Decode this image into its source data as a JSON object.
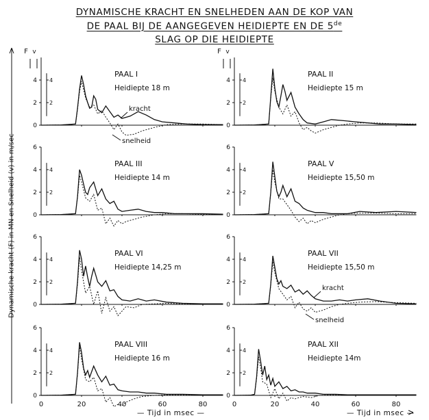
{
  "title": {
    "line1": "DYNAMISCHE KRACHT EN SNELHEDEN AAN DE KOP VAN",
    "line2": "DE PAAL BIJ DE AANGEGEVEN HEIDIEPTE EN DE 5",
    "line2_sup": "de",
    "line3": "SLAG OP DIE HEIDIEPTE"
  },
  "ylabel": "Dynamische kracht (F) in MN en Snelheid (v) in m/sec",
  "xlabel": "Tijd in msec",
  "axis_symbols": {
    "force": "F",
    "velocity": "v"
  },
  "colors": {
    "line": "#111111",
    "background": "#ffffff"
  },
  "chart_data": [
    {
      "type": "line",
      "name": "PAAL I",
      "depth": "Heidiepte 18 m",
      "annotations": [
        "kracht",
        "snelheid"
      ],
      "xlim": [
        0,
        90
      ],
      "ylim": [
        -1,
        6
      ],
      "x_ticks": [],
      "y_ticks_force": [
        0,
        2,
        4
      ],
      "y_ticks_velocity": [
        2,
        4
      ],
      "series": [
        {
          "name": "kracht",
          "x": [
            0,
            10,
            17,
            18,
            19,
            20,
            21,
            22,
            23,
            24,
            25,
            26,
            27,
            28,
            30,
            32,
            34,
            36,
            38,
            40,
            44,
            48,
            52,
            56,
            60,
            66,
            72,
            80,
            90
          ],
          "y": [
            0,
            0.02,
            0.1,
            1.5,
            3.2,
            4.4,
            3.6,
            2.6,
            2.0,
            1.5,
            1.6,
            2.6,
            2.3,
            1.4,
            1.1,
            1.7,
            1.2,
            0.7,
            0.9,
            0.6,
            0.8,
            1.2,
            0.9,
            0.5,
            0.3,
            0.2,
            0.1,
            0.05,
            0.05
          ]
        },
        {
          "name": "snelheid",
          "x": [
            0,
            10,
            17,
            18,
            19,
            20,
            22,
            24,
            26,
            28,
            30,
            32,
            34,
            36,
            38,
            40,
            42,
            46,
            50,
            56,
            62,
            70,
            80,
            90
          ],
          "y": [
            0,
            0.02,
            0.1,
            1.4,
            3.0,
            3.9,
            2.4,
            1.6,
            1.8,
            1.0,
            1.3,
            0.7,
            0.2,
            -0.4,
            0.1,
            -0.6,
            -0.9,
            -0.8,
            -0.5,
            -0.2,
            0.05,
            0.1,
            0.1,
            0.05
          ]
        }
      ]
    },
    {
      "type": "line",
      "name": "PAAL II",
      "depth": "Heidiepte 15 m",
      "xlim": [
        0,
        90
      ],
      "ylim": [
        -1,
        6
      ],
      "x_ticks": [],
      "y_ticks_force": [
        0,
        2,
        4
      ],
      "y_ticks_velocity": [
        2,
        4
      ],
      "series": [
        {
          "name": "kracht",
          "x": [
            0,
            10,
            17,
            18,
            19,
            20,
            21,
            22,
            23,
            24,
            25,
            26,
            28,
            30,
            32,
            34,
            36,
            40,
            44,
            48,
            54,
            60,
            66,
            72,
            80,
            90
          ],
          "y": [
            0,
            0.02,
            0.1,
            2.5,
            5.0,
            3.3,
            2.1,
            1.6,
            2.6,
            3.6,
            3.0,
            2.2,
            2.9,
            1.6,
            1.0,
            0.5,
            0.2,
            0.1,
            0.3,
            0.5,
            0.4,
            0.3,
            0.2,
            0.1,
            0.1,
            0.05
          ]
        },
        {
          "name": "snelheid",
          "x": [
            0,
            10,
            17,
            18,
            19,
            20,
            22,
            24,
            26,
            28,
            30,
            32,
            34,
            36,
            38,
            40,
            44,
            48,
            52,
            56,
            62,
            70,
            80,
            90
          ],
          "y": [
            0,
            0.02,
            0.1,
            2.4,
            4.2,
            3.0,
            1.6,
            1.0,
            1.8,
            0.8,
            1.2,
            0.2,
            -0.4,
            -0.2,
            -0.5,
            -0.7,
            -0.4,
            -0.2,
            0.0,
            0.1,
            0.2,
            0.2,
            0.1,
            0.1
          ]
        }
      ]
    },
    {
      "type": "line",
      "name": "PAAL III",
      "depth": "Heidiepte 14 m",
      "xlim": [
        0,
        90
      ],
      "ylim": [
        -1,
        6
      ],
      "x_ticks": [],
      "y_ticks_force": [
        0,
        2,
        4
      ],
      "y_ticks_velocity": [
        2,
        4
      ],
      "series": [
        {
          "name": "kracht",
          "x": [
            0,
            10,
            17,
            18,
            19,
            20,
            21,
            22,
            23,
            24,
            26,
            28,
            30,
            32,
            34,
            36,
            38,
            40,
            44,
            48,
            52,
            56,
            60,
            66,
            72,
            80,
            90
          ],
          "y": [
            0,
            0.02,
            0.1,
            1.6,
            4.0,
            3.5,
            2.7,
            2.0,
            1.8,
            2.4,
            2.9,
            1.7,
            2.3,
            1.4,
            1.0,
            1.2,
            0.5,
            0.3,
            0.4,
            0.5,
            0.3,
            0.2,
            0.2,
            0.1,
            0.1,
            0.1,
            0.05
          ]
        },
        {
          "name": "snelheid",
          "x": [
            0,
            10,
            17,
            18,
            19,
            20,
            22,
            24,
            26,
            28,
            30,
            32,
            34,
            36,
            38,
            40,
            42,
            46,
            50,
            56,
            62,
            70,
            80,
            90
          ],
          "y": [
            0,
            0.02,
            0.1,
            1.5,
            3.5,
            2.9,
            1.5,
            1.2,
            1.8,
            0.4,
            0.6,
            -0.8,
            -0.3,
            -1.0,
            -0.5,
            -0.8,
            -0.6,
            -0.4,
            -0.2,
            0.0,
            0.1,
            0.1,
            0.05,
            0.05
          ]
        }
      ]
    },
    {
      "type": "line",
      "name": "PAAL V",
      "depth": "Heidiepte 15,50 m",
      "xlim": [
        0,
        90
      ],
      "ylim": [
        -1,
        6
      ],
      "x_ticks": [],
      "y_ticks_force": [
        0,
        2,
        4
      ],
      "y_ticks_velocity": [
        2,
        4
      ],
      "series": [
        {
          "name": "kracht",
          "x": [
            0,
            10,
            17,
            18,
            19,
            20,
            21,
            22,
            23,
            24,
            26,
            28,
            30,
            32,
            34,
            36,
            38,
            40,
            44,
            48,
            52,
            56,
            62,
            70,
            80,
            90
          ],
          "y": [
            0,
            0.02,
            0.1,
            2.0,
            4.7,
            3.4,
            2.1,
            1.6,
            2.0,
            2.6,
            1.6,
            2.3,
            1.2,
            1.0,
            0.6,
            0.4,
            0.3,
            0.2,
            0.2,
            0.1,
            0.1,
            0.1,
            0.3,
            0.2,
            0.3,
            0.2
          ]
        },
        {
          "name": "snelheid",
          "x": [
            0,
            10,
            17,
            18,
            19,
            20,
            22,
            24,
            26,
            28,
            30,
            32,
            34,
            36,
            38,
            40,
            44,
            48,
            52,
            56,
            62,
            70,
            80,
            90
          ],
          "y": [
            0,
            0.02,
            0.1,
            2.0,
            4.0,
            2.9,
            1.4,
            1.4,
            0.9,
            0.4,
            -0.2,
            -0.6,
            -0.3,
            -0.8,
            -0.5,
            -0.7,
            -0.4,
            -0.2,
            0.0,
            0.1,
            0.15,
            0.15,
            0.1,
            0.1
          ]
        }
      ]
    },
    {
      "type": "line",
      "name": "PAAL VI",
      "depth": "Heidiepte 14,25 m",
      "xlim": [
        0,
        90
      ],
      "ylim": [
        -1,
        6
      ],
      "x_ticks": [],
      "y_ticks_force": [
        0,
        2,
        4
      ],
      "y_ticks_velocity": [
        2,
        4
      ],
      "series": [
        {
          "name": "kracht",
          "x": [
            0,
            10,
            17,
            18,
            19,
            20,
            21,
            22,
            23,
            24,
            25,
            26,
            27,
            28,
            30,
            32,
            34,
            36,
            38,
            40,
            44,
            48,
            52,
            56,
            62,
            70,
            80,
            90
          ],
          "y": [
            0,
            0.02,
            0.1,
            2.0,
            4.8,
            4.0,
            2.5,
            3.4,
            2.4,
            1.6,
            2.5,
            3.2,
            2.6,
            2.0,
            1.6,
            2.1,
            1.2,
            1.3,
            0.7,
            0.4,
            0.3,
            0.5,
            0.3,
            0.4,
            0.2,
            0.1,
            0.05,
            0.05
          ]
        },
        {
          "name": "snelheid",
          "x": [
            0,
            10,
            17,
            18,
            19,
            20,
            22,
            24,
            26,
            28,
            30,
            32,
            34,
            36,
            38,
            40,
            42,
            46,
            50,
            56,
            62,
            70,
            80,
            90
          ],
          "y": [
            0,
            0.02,
            0.1,
            1.8,
            4.2,
            3.0,
            1.0,
            1.6,
            0.0,
            1.2,
            -0.8,
            0.6,
            -0.6,
            -0.2,
            -1.0,
            -0.6,
            -0.2,
            -0.3,
            0.0,
            0.05,
            0.1,
            0.05,
            0.05,
            0.05
          ]
        }
      ]
    },
    {
      "type": "line",
      "name": "PAAL VII",
      "depth": "Heidiepte 15,50 m",
      "annotations": [
        "kracht",
        "snelheid"
      ],
      "xlim": [
        0,
        90
      ],
      "ylim": [
        -1,
        6
      ],
      "x_ticks": [],
      "y_ticks_force": [
        0,
        2,
        4
      ],
      "y_ticks_velocity": [
        2,
        4
      ],
      "series": [
        {
          "name": "kracht",
          "x": [
            0,
            10,
            17,
            18,
            19,
            20,
            21,
            22,
            23,
            24,
            26,
            28,
            30,
            32,
            34,
            36,
            38,
            40,
            44,
            48,
            52,
            56,
            60,
            66,
            72,
            80,
            90
          ],
          "y": [
            0,
            0.02,
            0.1,
            1.8,
            4.3,
            3.3,
            2.3,
            1.8,
            2.1,
            1.6,
            1.4,
            1.7,
            1.1,
            1.3,
            0.9,
            1.2,
            0.8,
            0.5,
            0.3,
            0.3,
            0.4,
            0.3,
            0.4,
            0.5,
            0.3,
            0.1,
            0.05
          ]
        },
        {
          "name": "snelheid",
          "x": [
            0,
            10,
            17,
            18,
            19,
            20,
            22,
            24,
            26,
            28,
            30,
            32,
            34,
            36,
            38,
            40,
            44,
            48,
            52,
            56,
            62,
            70,
            80,
            90
          ],
          "y": [
            0,
            0.02,
            0.1,
            1.7,
            3.8,
            2.8,
            1.4,
            0.9,
            0.4,
            0.7,
            -0.3,
            0.2,
            -0.4,
            -0.6,
            -0.3,
            -0.7,
            -0.5,
            -0.2,
            0.0,
            0.1,
            0.2,
            0.25,
            0.15,
            0.1
          ]
        }
      ]
    },
    {
      "type": "line",
      "name": "PAAL VIII",
      "depth": "Heidiepte 16 m",
      "xlim": [
        0,
        90
      ],
      "ylim": [
        -1,
        6
      ],
      "x_ticks": [
        0,
        20,
        40,
        60,
        80
      ],
      "y_ticks_force": [
        0,
        2,
        4
      ],
      "y_ticks_velocity": [
        2,
        4
      ],
      "series": [
        {
          "name": "kracht",
          "x": [
            0,
            10,
            17,
            18,
            19,
            20,
            21,
            22,
            23,
            24,
            26,
            28,
            30,
            32,
            34,
            36,
            38,
            40,
            44,
            48,
            52,
            56,
            62,
            70,
            80,
            90
          ],
          "y": [
            0,
            0.02,
            0.1,
            2.0,
            4.7,
            3.8,
            2.4,
            1.8,
            2.2,
            1.6,
            2.6,
            1.8,
            1.2,
            1.7,
            0.9,
            1.0,
            0.5,
            0.4,
            0.3,
            0.3,
            0.2,
            0.2,
            0.1,
            0.1,
            0.05,
            0.05
          ]
        },
        {
          "name": "snelheid",
          "x": [
            0,
            10,
            17,
            18,
            19,
            20,
            22,
            24,
            26,
            28,
            30,
            32,
            34,
            36,
            38,
            40,
            42,
            46,
            50,
            56,
            62,
            70,
            80,
            90
          ],
          "y": [
            0,
            0.02,
            0.1,
            1.9,
            4.4,
            3.2,
            1.4,
            1.2,
            1.6,
            0.4,
            0.6,
            -0.6,
            -0.2,
            -1.0,
            -0.8,
            -0.9,
            -0.6,
            -0.3,
            -0.1,
            0.0,
            0.05,
            0.05,
            0.05,
            0.05
          ]
        }
      ]
    },
    {
      "type": "line",
      "name": "PAAL XII",
      "depth": "Heidiepte 14m",
      "xlim": [
        0,
        90
      ],
      "ylim": [
        -1,
        6
      ],
      "x_ticks": [
        0,
        20,
        40,
        60,
        80
      ],
      "y_ticks_force": [
        0,
        2,
        4
      ],
      "y_ticks_velocity": [
        2,
        4
      ],
      "series": [
        {
          "name": "kracht",
          "x": [
            0,
            8,
            10,
            11,
            12,
            13,
            14,
            15,
            16,
            17,
            18,
            19,
            20,
            22,
            24,
            26,
            28,
            30,
            32,
            34,
            36,
            40,
            44,
            50,
            56,
            62,
            70,
            80,
            90
          ],
          "y": [
            0,
            0.02,
            0.1,
            1.6,
            4.1,
            3.0,
            1.8,
            2.6,
            1.4,
            1.8,
            0.9,
            1.5,
            0.8,
            1.2,
            0.6,
            0.8,
            0.4,
            0.5,
            0.3,
            0.3,
            0.2,
            0.2,
            0.1,
            0.1,
            0.05,
            0.05,
            0.05,
            0.05,
            0.05
          ]
        },
        {
          "name": "snelheid",
          "x": [
            0,
            8,
            10,
            11,
            12,
            13,
            14,
            16,
            18,
            20,
            22,
            24,
            26,
            28,
            30,
            34,
            38,
            42,
            48,
            56,
            62,
            70,
            80,
            90
          ],
          "y": [
            0,
            0.02,
            0.1,
            1.5,
            3.4,
            2.4,
            1.2,
            1.0,
            -0.2,
            0.6,
            -0.3,
            0.2,
            -0.5,
            -0.2,
            -0.3,
            -0.1,
            -0.2,
            0.0,
            0.05,
            0.05,
            0.05,
            0.05,
            0.05,
            0.05
          ]
        }
      ]
    }
  ]
}
